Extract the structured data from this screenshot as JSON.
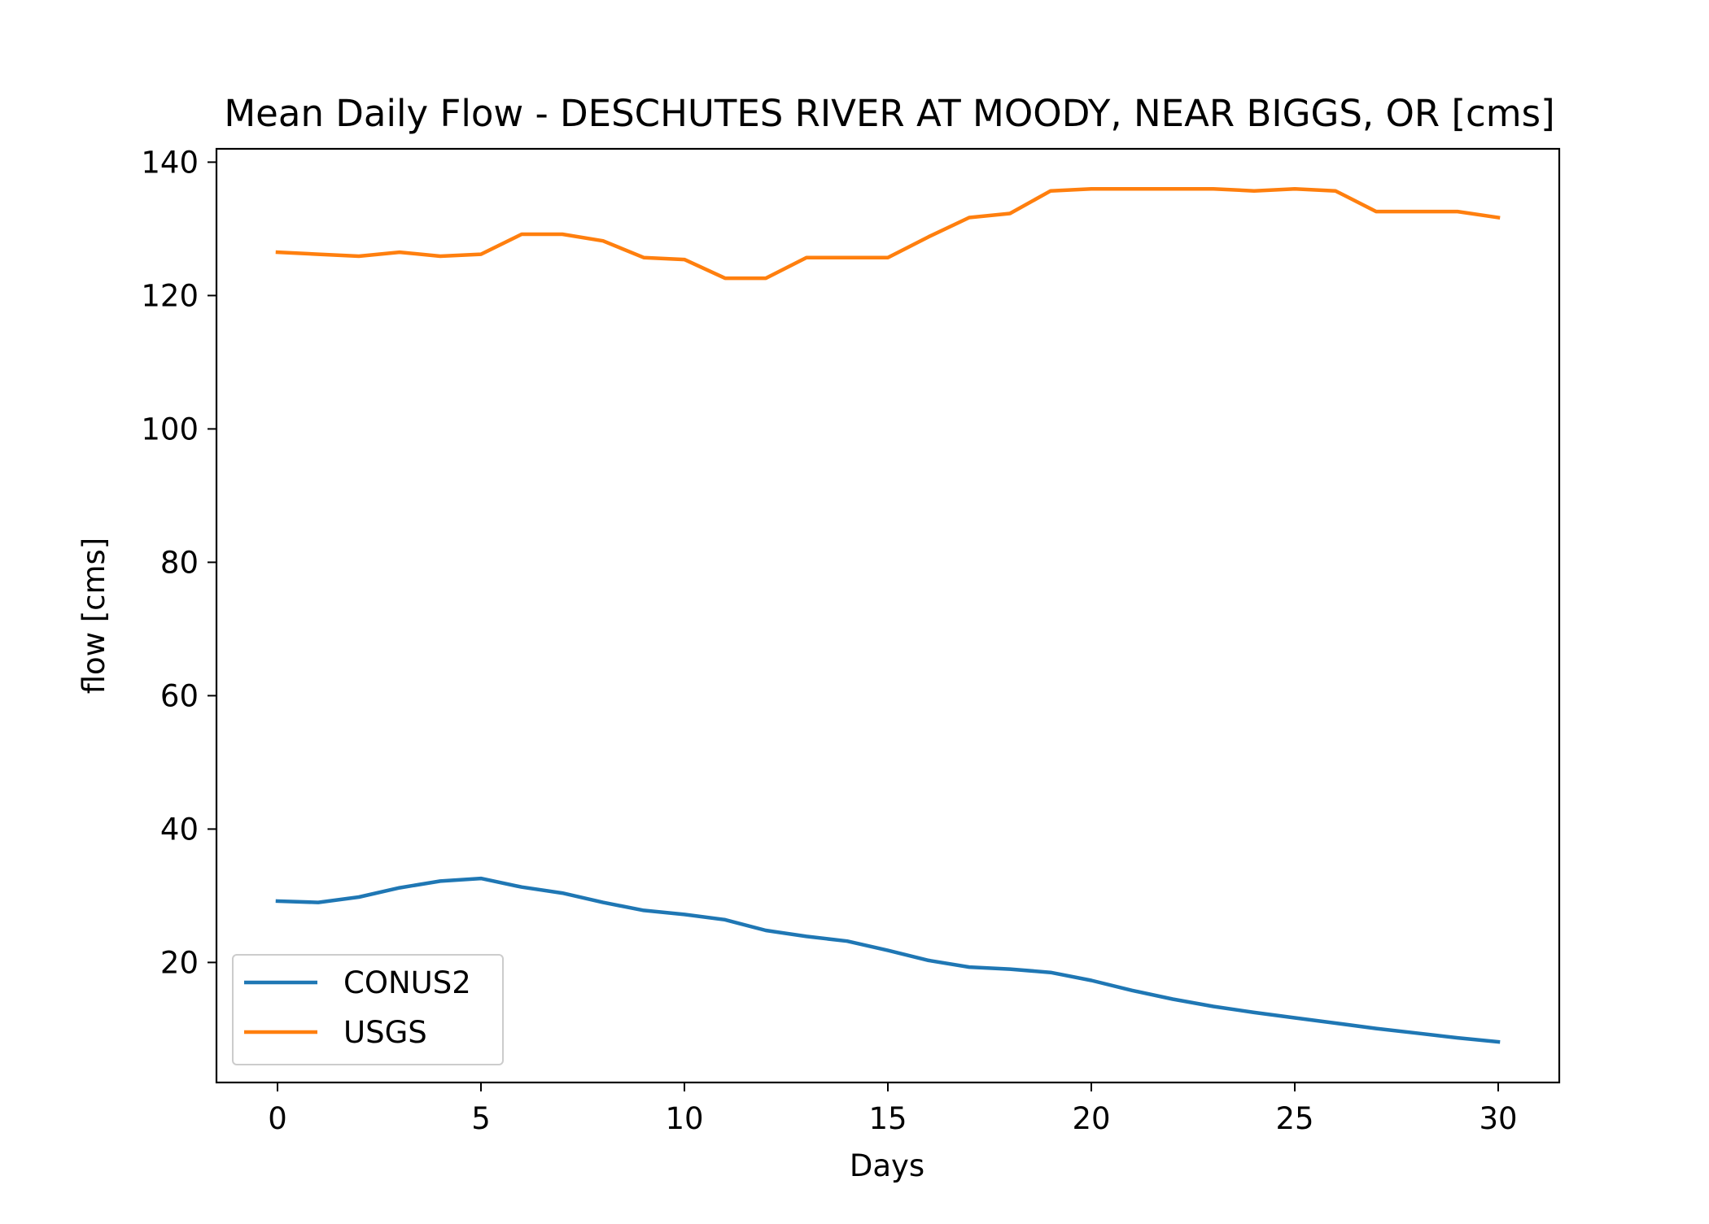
{
  "chart_data": {
    "type": "line",
    "title": "Mean Daily Flow - DESCHUTES RIVER AT MOODY, NEAR BIGGS, OR [cms]",
    "xlabel": "Days",
    "ylabel": "flow [cms]",
    "xlim": [
      -1.5,
      31.5
    ],
    "ylim": [
      2,
      142
    ],
    "xticks": [
      0,
      5,
      10,
      15,
      20,
      25,
      30
    ],
    "yticks": [
      20,
      40,
      60,
      80,
      100,
      120,
      140
    ],
    "grid": false,
    "legend_position": "lower-left",
    "x": [
      0,
      1,
      2,
      3,
      4,
      5,
      6,
      7,
      8,
      9,
      10,
      11,
      12,
      13,
      14,
      15,
      16,
      17,
      18,
      19,
      20,
      21,
      22,
      23,
      24,
      25,
      26,
      27,
      28,
      29,
      30
    ],
    "series": [
      {
        "name": "CONUS2",
        "color": "#1f77b4",
        "values": [
          29.2,
          29.0,
          29.8,
          31.2,
          32.2,
          32.6,
          31.3,
          30.4,
          29.0,
          27.8,
          27.2,
          26.4,
          24.8,
          23.9,
          23.2,
          21.8,
          20.3,
          19.3,
          19.0,
          18.5,
          17.3,
          15.8,
          14.5,
          13.4,
          12.5,
          11.7,
          10.9,
          10.1,
          9.4,
          8.7,
          8.1
        ]
      },
      {
        "name": "USGS",
        "color": "#ff7f0e",
        "values": [
          126.5,
          126.2,
          125.9,
          126.5,
          125.9,
          126.2,
          129.2,
          129.2,
          128.2,
          125.7,
          125.4,
          122.6,
          122.6,
          125.7,
          125.7,
          125.7,
          128.8,
          131.7,
          132.3,
          135.7,
          136.0,
          136.0,
          136.0,
          136.0,
          135.7,
          136.0,
          135.7,
          132.6,
          132.6,
          132.6,
          131.7
        ]
      }
    ]
  }
}
